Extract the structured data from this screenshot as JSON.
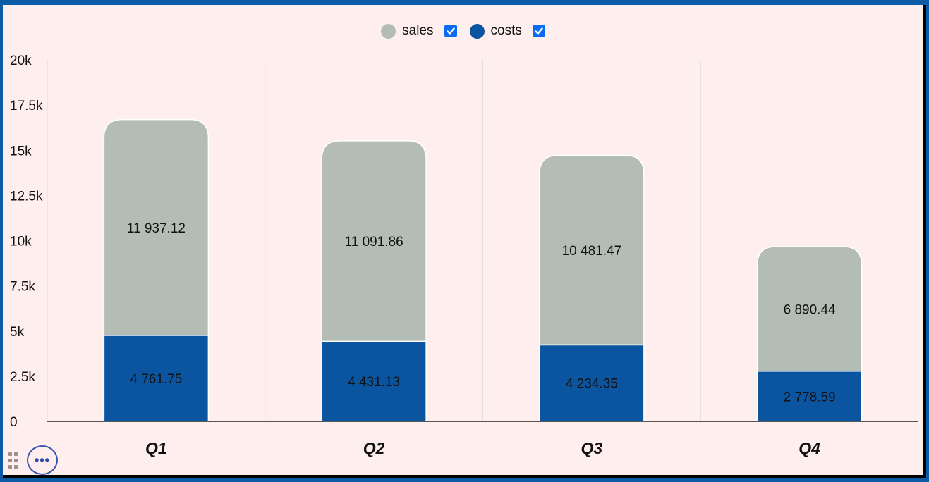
{
  "legend": {
    "items": [
      {
        "label": "sales",
        "color": "#b3bdb5",
        "checked": true
      },
      {
        "label": "costs",
        "color": "#0b54a0",
        "checked": true
      }
    ]
  },
  "colors": {
    "sales": "#b3bdb5",
    "costs": "#0b54a0",
    "gridline": "#e2dcdc",
    "axis": "#222222"
  },
  "icons": {
    "drag": "drag-handle-icon",
    "more": "ellipsis-icon",
    "check": "checkmark-icon"
  },
  "more_label": "•••",
  "chart_data": {
    "type": "bar",
    "stacked": true,
    "categories": [
      "Q1",
      "Q2",
      "Q3",
      "Q4"
    ],
    "series": [
      {
        "name": "costs",
        "values": [
          4761.75,
          4431.13,
          4234.35,
          2778.59
        ],
        "labels": [
          "4 761.75",
          "4 431.13",
          "4 234.35",
          "2 778.59"
        ]
      },
      {
        "name": "sales",
        "values": [
          11937.12,
          11091.86,
          10481.47,
          6890.44
        ],
        "labels": [
          "11 937.12",
          "11 091.86",
          "10 481.47",
          "6 890.44"
        ]
      }
    ],
    "ylim": [
      0,
      20000
    ],
    "yticks": [
      0,
      2500,
      5000,
      7500,
      10000,
      12500,
      15000,
      17500,
      20000
    ],
    "ytick_labels": [
      "0",
      "2.5k",
      "5k",
      "7.5k",
      "10k",
      "12.5k",
      "15k",
      "17.5k",
      "20k"
    ],
    "legend_position": "top-center",
    "grid": "vertical"
  }
}
